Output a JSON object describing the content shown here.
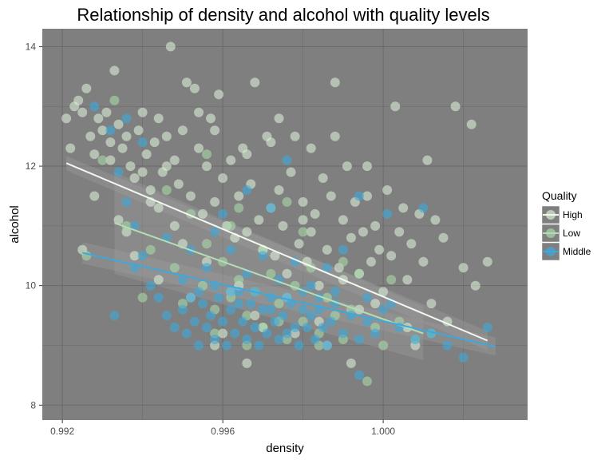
{
  "chart_data": {
    "type": "scatter",
    "title": "Relationship of density and alcohol with quality levels",
    "xlabel": "density",
    "ylabel": "alcohol",
    "xlim": [
      0.9915,
      1.0036
    ],
    "ylim": [
      7.75,
      14.3
    ],
    "x_ticks": [
      0.992,
      0.996,
      1.0
    ],
    "x_tick_labels": [
      "0.992",
      "0.996",
      "1.000"
    ],
    "y_ticks": [
      8,
      10,
      12,
      14
    ],
    "y_tick_labels": [
      "8",
      "10",
      "12",
      "14"
    ],
    "grid": true,
    "panel_color": "#7f7f7f",
    "legend": {
      "title": "Quality",
      "placement": "right",
      "entries": [
        "High",
        "Low",
        "Middle"
      ]
    },
    "series": [
      {
        "name": "High",
        "color": "#d9ecd3",
        "points": [
          [
            0.9921,
            12.8
          ],
          [
            0.9922,
            12.3
          ],
          [
            0.9923,
            13.0
          ],
          [
            0.9924,
            13.1
          ],
          [
            0.9925,
            12.9
          ],
          [
            0.9926,
            13.3
          ],
          [
            0.9927,
            12.5
          ],
          [
            0.9928,
            12.2
          ],
          [
            0.9929,
            12.8
          ],
          [
            0.993,
            12.6
          ],
          [
            0.9931,
            12.9
          ],
          [
            0.9932,
            12.4
          ],
          [
            0.9933,
            13.6
          ],
          [
            0.9934,
            12.7
          ],
          [
            0.9935,
            12.3
          ],
          [
            0.9936,
            12.5
          ],
          [
            0.9937,
            12.0
          ],
          [
            0.9938,
            11.8
          ],
          [
            0.9939,
            12.6
          ],
          [
            0.994,
            12.9
          ],
          [
            0.9941,
            12.2
          ],
          [
            0.9942,
            11.6
          ],
          [
            0.9943,
            12.4
          ],
          [
            0.9944,
            12.8
          ],
          [
            0.9945,
            11.9
          ],
          [
            0.9946,
            12.5
          ],
          [
            0.9947,
            14.0
          ],
          [
            0.9948,
            12.1
          ],
          [
            0.9949,
            11.7
          ],
          [
            0.995,
            12.6
          ],
          [
            0.9951,
            13.4
          ],
          [
            0.9952,
            11.5
          ],
          [
            0.9953,
            13.3
          ],
          [
            0.9954,
            12.3
          ],
          [
            0.9955,
            11.2
          ],
          [
            0.9956,
            12.0
          ],
          [
            0.9957,
            12.8
          ],
          [
            0.9958,
            11.4
          ],
          [
            0.9959,
            13.2
          ],
          [
            0.996,
            11.8
          ],
          [
            0.9961,
            11.0
          ],
          [
            0.9962,
            12.1
          ],
          [
            0.9963,
            10.8
          ],
          [
            0.9964,
            11.5
          ],
          [
            0.9965,
            12.3
          ],
          [
            0.9966,
            10.9
          ],
          [
            0.9967,
            11.7
          ],
          [
            0.9968,
            13.4
          ],
          [
            0.9969,
            11.1
          ],
          [
            0.997,
            10.6
          ],
          [
            0.9971,
            12.5
          ],
          [
            0.9972,
            11.3
          ],
          [
            0.9973,
            10.5
          ],
          [
            0.9974,
            12.8
          ],
          [
            0.9975,
            11.0
          ],
          [
            0.9976,
            10.2
          ],
          [
            0.9977,
            11.9
          ],
          [
            0.9978,
            12.5
          ],
          [
            0.9979,
            10.7
          ],
          [
            0.998,
            11.4
          ],
          [
            0.9981,
            10.4
          ],
          [
            0.9982,
            12.3
          ],
          [
            0.9983,
            11.2
          ],
          [
            0.9984,
            10.0
          ],
          [
            0.9985,
            11.8
          ],
          [
            0.9986,
            10.6
          ],
          [
            0.9987,
            11.5
          ],
          [
            0.9988,
            13.4
          ],
          [
            0.9989,
            10.3
          ],
          [
            0.999,
            11.1
          ],
          [
            0.9991,
            12.0
          ],
          [
            0.9992,
            10.8
          ],
          [
            0.9993,
            11.4
          ],
          [
            0.9994,
            10.2
          ],
          [
            0.9995,
            10.9
          ],
          [
            0.9996,
            11.5
          ],
          [
            0.9997,
            10.4
          ],
          [
            0.9998,
            11.0
          ],
          [
            0.9999,
            10.6
          ],
          [
            1.0001,
            11.6
          ],
          [
            1.0002,
            10.5
          ],
          [
            1.0003,
            13.0
          ],
          [
            1.0004,
            10.9
          ],
          [
            1.0005,
            11.3
          ],
          [
            1.0006,
            10.1
          ],
          [
            1.0007,
            10.7
          ],
          [
            1.0009,
            11.2
          ],
          [
            1.001,
            10.4
          ],
          [
            1.0011,
            12.1
          ],
          [
            1.0012,
            9.7
          ],
          [
            1.0013,
            11.1
          ],
          [
            1.0015,
            10.8
          ],
          [
            1.0016,
            9.4
          ],
          [
            1.0018,
            13.0
          ],
          [
            1.002,
            10.3
          ],
          [
            1.0022,
            12.7
          ],
          [
            1.0023,
            10.0
          ],
          [
            1.0026,
            10.4
          ],
          [
            0.9925,
            10.6
          ],
          [
            0.9938,
            10.5
          ],
          [
            0.9944,
            11.3
          ],
          [
            0.995,
            10.7
          ],
          [
            0.9958,
            12.6
          ],
          [
            0.9966,
            12.2
          ],
          [
            0.9974,
            11.6
          ],
          [
            0.9982,
            10.9
          ],
          [
            0.999,
            10.1
          ],
          [
            0.9998,
            9.7
          ],
          [
            1.0006,
            9.3
          ],
          [
            0.9962,
            9.9
          ],
          [
            0.997,
            9.3
          ],
          [
            0.9978,
            9.2
          ],
          [
            0.9986,
            9.0
          ],
          [
            0.9994,
            9.6
          ],
          [
            0.9956,
            10.4
          ],
          [
            0.9964,
            10.0
          ],
          [
            0.9948,
            11.0
          ],
          [
            0.994,
            11.9
          ],
          [
            0.9932,
            12.1
          ],
          [
            0.998,
            11.1
          ],
          [
            0.9988,
            12.5
          ],
          [
            0.9996,
            12.0
          ],
          [
            0.9972,
            12.4
          ],
          [
            0.9954,
            12.9
          ],
          [
            0.9946,
            12.0
          ],
          [
            0.9976,
            9.8
          ],
          [
            0.9968,
            9.5
          ],
          [
            0.996,
            9.2
          ],
          [
            0.9984,
            9.4
          ],
          [
            1.0,
            9.9
          ],
          [
            1.0008,
            9.0
          ],
          [
            0.9992,
            8.7
          ],
          [
            0.9966,
            8.7
          ],
          [
            0.9958,
            9.0
          ],
          [
            0.9952,
            9.8
          ],
          [
            0.9944,
            10.1
          ],
          [
            0.9936,
            10.9
          ],
          [
            0.9928,
            11.5
          ],
          [
            0.9934,
            11.1
          ],
          [
            0.9942,
            11.4
          ]
        ]
      },
      {
        "name": "Low",
        "color": "#a8d8a8",
        "points": [
          [
            0.993,
            12.1
          ],
          [
            0.9936,
            11.0
          ],
          [
            0.9942,
            10.6
          ],
          [
            0.9948,
            10.3
          ],
          [
            0.9952,
            11.2
          ],
          [
            0.9955,
            10.0
          ],
          [
            0.9958,
            9.6
          ],
          [
            0.996,
            10.4
          ],
          [
            0.9962,
            9.8
          ],
          [
            0.9964,
            10.1
          ],
          [
            0.9966,
            9.5
          ],
          [
            0.9968,
            9.9
          ],
          [
            0.997,
            9.3
          ],
          [
            0.9972,
            10.2
          ],
          [
            0.9974,
            9.7
          ],
          [
            0.9976,
            9.1
          ],
          [
            0.9978,
            10.0
          ],
          [
            0.998,
            9.4
          ],
          [
            0.9982,
            10.3
          ],
          [
            0.9984,
            9.2
          ],
          [
            0.9986,
            9.8
          ],
          [
            0.9988,
            9.5
          ],
          [
            0.999,
            9.1
          ],
          [
            0.9992,
            9.6
          ],
          [
            0.9994,
            10.2
          ],
          [
            0.9996,
            8.4
          ],
          [
            0.9998,
            9.3
          ],
          [
            1.0,
            9.0
          ],
          [
            1.0004,
            9.4
          ],
          [
            1.0008,
            9.1
          ],
          [
            1.0012,
            9.2
          ],
          [
            0.9933,
            13.1
          ],
          [
            0.9946,
            11.6
          ],
          [
            0.9956,
            12.2
          ],
          [
            0.9964,
            11.3
          ],
          [
            0.995,
            9.7
          ],
          [
            0.9958,
            9.2
          ],
          [
            0.9966,
            9.0
          ],
          [
            0.9974,
            9.4
          ],
          [
            0.9984,
            9.0
          ],
          [
            0.994,
            9.8
          ],
          [
            0.9926,
            10.5
          ],
          [
            0.9956,
            10.7
          ],
          [
            0.997,
            10.6
          ],
          [
            0.998,
            10.9
          ],
          [
            0.999,
            10.4
          ],
          [
            1.0002,
            10.1
          ],
          [
            0.9962,
            11.0
          ],
          [
            0.9976,
            11.4
          ]
        ]
      },
      {
        "name": "Middle",
        "color": "#3ea8dc",
        "points": [
          [
            0.9928,
            13.0
          ],
          [
            0.9932,
            12.6
          ],
          [
            0.9934,
            11.9
          ],
          [
            0.9936,
            11.4
          ],
          [
            0.9938,
            11.0
          ],
          [
            0.994,
            10.5
          ],
          [
            0.9942,
            10.0
          ],
          [
            0.9933,
            9.5
          ],
          [
            0.9944,
            9.8
          ],
          [
            0.9946,
            9.5
          ],
          [
            0.9948,
            9.3
          ],
          [
            0.995,
            9.6
          ],
          [
            0.9951,
            9.2
          ],
          [
            0.9952,
            9.8
          ],
          [
            0.9953,
            9.4
          ],
          [
            0.9954,
            9.0
          ],
          [
            0.9955,
            9.7
          ],
          [
            0.9956,
            9.3
          ],
          [
            0.9957,
            9.5
          ],
          [
            0.9958,
            9.1
          ],
          [
            0.9959,
            9.8
          ],
          [
            0.996,
            9.4
          ],
          [
            0.9961,
            9.0
          ],
          [
            0.9962,
            9.6
          ],
          [
            0.9963,
            9.2
          ],
          [
            0.9964,
            9.9
          ],
          [
            0.9965,
            9.4
          ],
          [
            0.9966,
            9.1
          ],
          [
            0.9967,
            9.7
          ],
          [
            0.9968,
            9.3
          ],
          [
            0.9969,
            9.0
          ],
          [
            0.997,
            9.6
          ],
          [
            0.9971,
            9.2
          ],
          [
            0.9972,
            9.8
          ],
          [
            0.9973,
            9.4
          ],
          [
            0.9974,
            9.1
          ],
          [
            0.9975,
            9.5
          ],
          [
            0.9976,
            9.2
          ],
          [
            0.9977,
            9.7
          ],
          [
            0.9978,
            9.3
          ],
          [
            0.9979,
            9.0
          ],
          [
            0.998,
            9.6
          ],
          [
            0.9981,
            9.3
          ],
          [
            0.9982,
            9.5
          ],
          [
            0.9983,
            9.1
          ],
          [
            0.9984,
            9.6
          ],
          [
            0.9985,
            9.3
          ],
          [
            0.9986,
            9.0
          ],
          [
            0.9987,
            9.4
          ],
          [
            0.9988,
            9.7
          ],
          [
            0.999,
            9.2
          ],
          [
            0.9992,
            9.5
          ],
          [
            0.9994,
            9.1
          ],
          [
            0.9996,
            9.4
          ],
          [
            0.9998,
            9.2
          ],
          [
            1.0,
            9.6
          ],
          [
            1.0004,
            9.3
          ],
          [
            1.0008,
            9.1
          ],
          [
            1.0012,
            9.2
          ],
          [
            1.0016,
            9.0
          ],
          [
            1.002,
            8.8
          ],
          [
            1.0026,
            9.3
          ],
          [
            0.9994,
            8.5
          ],
          [
            0.9956,
            10.3
          ],
          [
            0.9962,
            10.6
          ],
          [
            0.9966,
            10.2
          ],
          [
            0.997,
            10.5
          ],
          [
            0.9974,
            10.1
          ],
          [
            0.9978,
            10.4
          ],
          [
            0.9982,
            10.0
          ],
          [
            0.9986,
            10.3
          ],
          [
            0.999,
            10.6
          ],
          [
            0.996,
            11.2
          ],
          [
            0.9966,
            11.6
          ],
          [
            0.9972,
            11.3
          ],
          [
            0.9976,
            12.1
          ],
          [
            0.9994,
            11.5
          ],
          [
            1.0001,
            11.2
          ],
          [
            1.001,
            11.3
          ],
          [
            0.9946,
            10.8
          ],
          [
            0.9952,
            10.6
          ],
          [
            0.9958,
            10.9
          ],
          [
            0.994,
            12.4
          ],
          [
            0.9936,
            12.8
          ],
          [
            0.9964,
            9.7
          ],
          [
            0.9968,
            9.9
          ],
          [
            0.9972,
            9.6
          ],
          [
            0.9976,
            9.8
          ],
          [
            0.998,
            9.9
          ],
          [
            0.9984,
            9.8
          ],
          [
            0.9988,
            9.9
          ],
          [
            0.995,
            10.1
          ],
          [
            0.9954,
            9.9
          ],
          [
            0.9958,
            10.0
          ],
          [
            0.9962,
            9.9
          ],
          [
            0.9996,
            9.8
          ],
          [
            1.0002,
            9.7
          ],
          [
            0.9938,
            10.3
          ]
        ]
      }
    ],
    "trend_lines": [
      {
        "name": "High",
        "color": "#f4f7ef",
        "x": [
          0.9921,
          1.0026
        ],
        "y": [
          12.05,
          9.08
        ],
        "band": [
          0.12,
          0.16
        ]
      },
      {
        "name": "Low",
        "color": "#b5ddb5",
        "x": [
          0.9933,
          1.001
        ],
        "y": [
          11.05,
          9.2
        ],
        "band": [
          0.85,
          0.45
        ]
      },
      {
        "name": "Middle",
        "color": "#3ea8dc",
        "x": [
          0.9925,
          1.0028
        ],
        "y": [
          10.55,
          8.98
        ],
        "band": [
          0.18,
          0.15
        ]
      }
    ]
  }
}
